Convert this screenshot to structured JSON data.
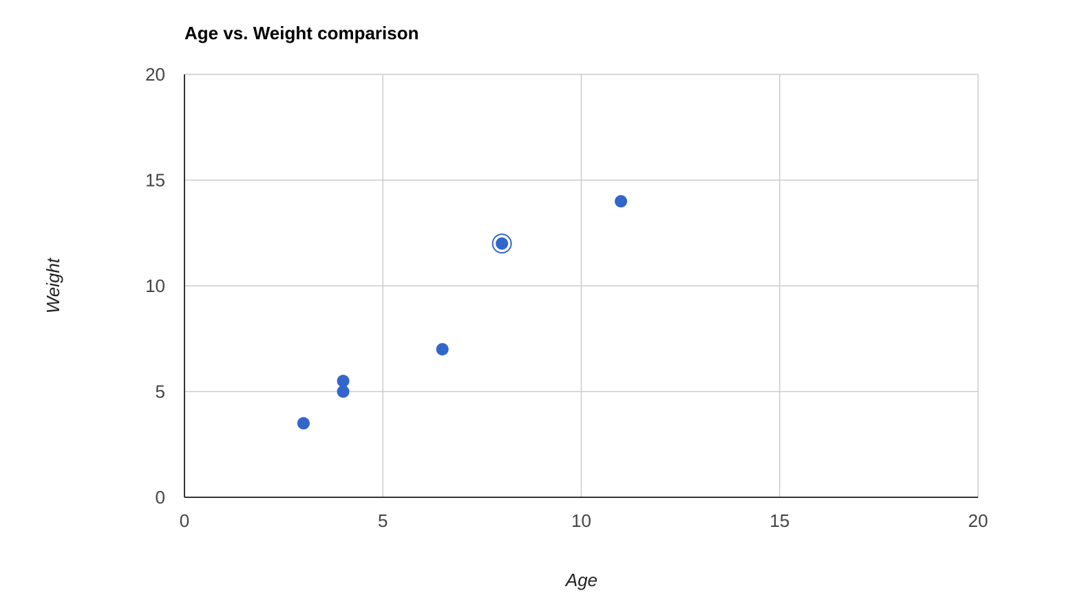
{
  "chart_data": {
    "type": "scatter",
    "title": "Age vs. Weight comparison",
    "xlabel": "Age",
    "ylabel": "Weight",
    "xlim": [
      0,
      20
    ],
    "ylim": [
      0,
      20
    ],
    "x_ticks": [
      "0",
      "5",
      "10",
      "15",
      "20"
    ],
    "y_ticks": [
      "0",
      "5",
      "10",
      "15",
      "20"
    ],
    "grid": true,
    "legend": "none",
    "series": [
      {
        "color": "#3366cc",
        "points": [
          {
            "x": 8,
            "y": 12
          },
          {
            "x": 4,
            "y": 5.5
          },
          {
            "x": 11,
            "y": 14
          },
          {
            "x": 4,
            "y": 5
          },
          {
            "x": 3,
            "y": 3.5
          },
          {
            "x": 6.5,
            "y": 7
          }
        ]
      }
    ],
    "highlighted_point": {
      "x": 8,
      "y": 12
    }
  }
}
